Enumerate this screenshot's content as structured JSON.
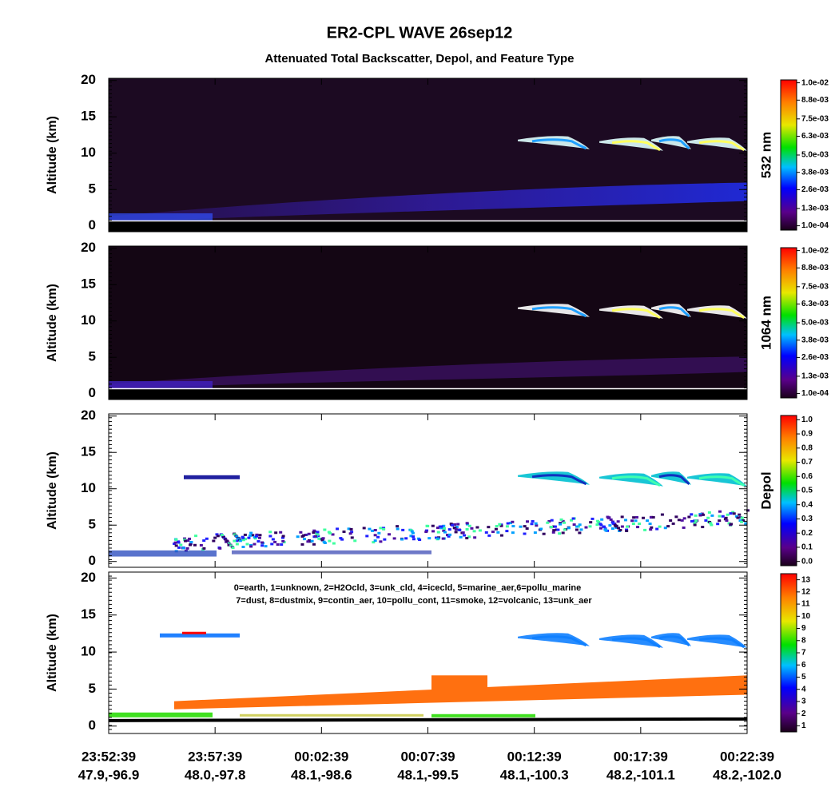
{
  "title": "ER2-CPL WAVE 26sep12",
  "subtitle": "Attenuated Total Backscatter, Depol, and Feature Type",
  "x_axis": {
    "ticks": [
      {
        "time": "23:52:39",
        "location": "47.9,-96.9"
      },
      {
        "time": "23:57:39",
        "location": "48.0,-97.8"
      },
      {
        "time": "00:02:39",
        "location": "48.1,-98.6"
      },
      {
        "time": "00:07:39",
        "location": "48.1,-99.5"
      },
      {
        "time": "00:12:39",
        "location": "48.1,-100.3"
      },
      {
        "time": "00:17:39",
        "location": "48.2,-101.1"
      },
      {
        "time": "00:22:39",
        "location": "48.2,-102.0"
      }
    ]
  },
  "chart_data": [
    {
      "type": "heatmap",
      "ylabel": "Altitude (km)",
      "ylim": [
        -0.8,
        20.3
      ],
      "yticks": [
        0,
        5,
        10,
        15,
        20
      ],
      "colorbar_label": "532 nm",
      "clim": [
        -0.0002,
        0.0102
      ],
      "colorbar_ticks": [
        {
          "value": 0.0001,
          "label": "1.0e-04"
        },
        {
          "value": 0.0013,
          "label": "1.3e-03"
        },
        {
          "value": 0.0026,
          "label": "2.6e-03"
        },
        {
          "value": 0.0038,
          "label": "3.8e-03"
        },
        {
          "value": 0.005,
          "label": "5.0e-03"
        },
        {
          "value": 0.0063,
          "label": "6.3e-03"
        },
        {
          "value": 0.0075,
          "label": "7.5e-03"
        },
        {
          "value": 0.0088,
          "label": "8.8e-03"
        },
        {
          "value": 0.01,
          "label": "1.0e-02"
        }
      ]
    },
    {
      "type": "heatmap",
      "ylabel": "Altitude (km)",
      "ylim": [
        -0.8,
        20.3
      ],
      "yticks": [
        0,
        5,
        10,
        15,
        20
      ],
      "colorbar_label": "1064 nm",
      "clim": [
        -0.0002,
        0.0102
      ],
      "colorbar_ticks": [
        {
          "value": 0.0001,
          "label": "1.0e-04"
        },
        {
          "value": 0.0013,
          "label": "1.3e-03"
        },
        {
          "value": 0.0026,
          "label": "2.6e-03"
        },
        {
          "value": 0.0038,
          "label": "3.8e-03"
        },
        {
          "value": 0.005,
          "label": "5.0e-03"
        },
        {
          "value": 0.0063,
          "label": "6.3e-03"
        },
        {
          "value": 0.0075,
          "label": "7.5e-03"
        },
        {
          "value": 0.0088,
          "label": "8.8e-03"
        },
        {
          "value": 0.01,
          "label": "1.0e-02"
        }
      ]
    },
    {
      "type": "heatmap",
      "ylabel": "Altitude (km)",
      "ylim": [
        -0.8,
        20.3
      ],
      "yticks": [
        0,
        5,
        10,
        15,
        20
      ],
      "colorbar_label": "Depol",
      "clim": [
        -0.03,
        1.03
      ],
      "colorbar_ticks": [
        {
          "value": 0,
          "label": "0.0"
        },
        0.1,
        0.2,
        0.3,
        0.4,
        0.5,
        0.6,
        0.7,
        0.8,
        0.9,
        {
          "value": 1,
          "label": "1.0"
        }
      ]
    },
    {
      "type": "heatmap",
      "ylabel": "Altitude (km)",
      "ylim": [
        -1.0,
        20.8
      ],
      "yticks": [
        0,
        5,
        10,
        15,
        20
      ],
      "annotations": [
        "0=earth, 1=unknown, 2=H2Ocld, 3=unk_cld, 4=icecld, 5=marine_aer,6=pollu_marine",
        "7=dust, 8=dustmix, 9=contin_aer, 10=pollu_cont, 11=smoke, 12=volcanic, 13=unk_aer"
      ],
      "clim": [
        0.5,
        13.5
      ],
      "colorbar_ticks": [
        1,
        2,
        3,
        4,
        5,
        6,
        7,
        8,
        9,
        10,
        11,
        12,
        13
      ]
    }
  ]
}
